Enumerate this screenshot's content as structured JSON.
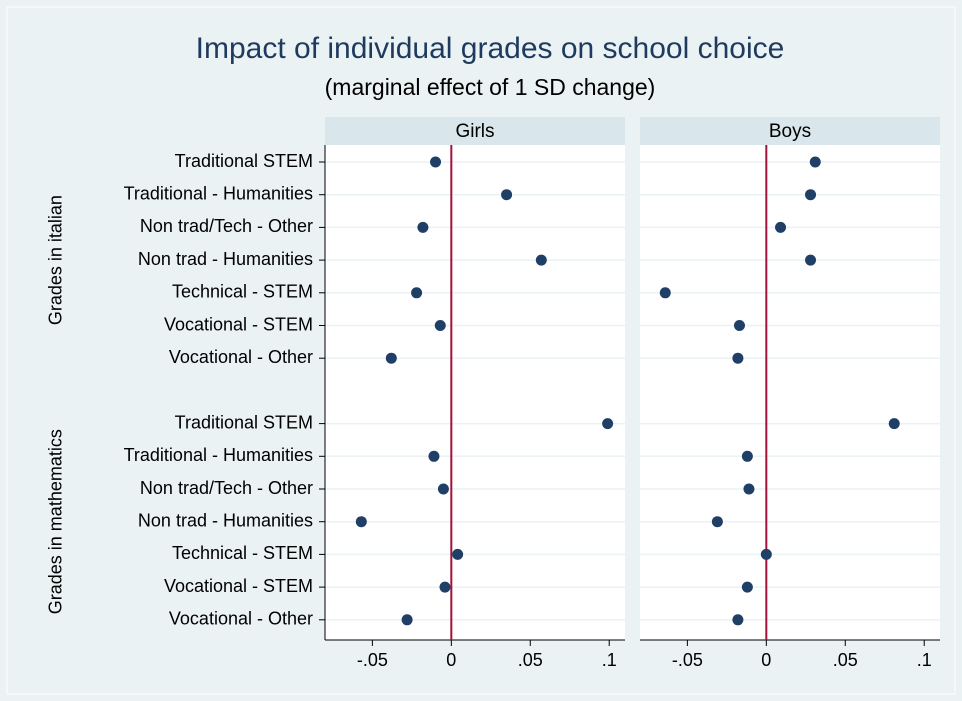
{
  "chart_data": {
    "type": "dot",
    "title": "Impact of individual grades on school choice",
    "subtitle": "(marginal effect of 1 SD change)",
    "color": "#1f3f66",
    "refline": 0,
    "refline_color": "#a3123a",
    "xlim": [
      -0.08,
      0.11
    ],
    "xticks": [
      {
        "value": -0.05,
        "label": "-.05"
      },
      0,
      {
        "value": 0.05,
        "label": ".05"
      },
      {
        "value": 0.1,
        "label": ".1"
      }
    ],
    "grid": true,
    "groups": [
      {
        "label": "Grades in italian",
        "categories": [
          "Traditional STEM",
          "Traditional - Humanities",
          "Non trad/Tech - Other",
          "Non trad - Humanities",
          "Technical - STEM",
          "Vocational - STEM",
          "Vocational - Other"
        ]
      },
      {
        "label": "Grades in mathematics",
        "categories": [
          "Traditional STEM",
          "Traditional - Humanities",
          "Non trad/Tech - Other",
          "Non trad - Humanities",
          "Technical - STEM",
          "Vocational - STEM",
          "Vocational - Other"
        ]
      }
    ],
    "panels": [
      {
        "name": "Girls",
        "values": [
          [
            -0.01,
            0.035,
            -0.018,
            0.057,
            -0.022,
            -0.007,
            -0.038
          ],
          [
            0.099,
            -0.011,
            -0.005,
            -0.057,
            0.004,
            -0.004,
            -0.028
          ]
        ]
      },
      {
        "name": "Boys",
        "values": [
          [
            0.031,
            0.028,
            0.009,
            0.028,
            -0.064,
            -0.017,
            -0.018
          ],
          [
            0.081,
            -0.012,
            -0.011,
            -0.031,
            0.0,
            -0.012,
            -0.018
          ]
        ]
      }
    ]
  }
}
